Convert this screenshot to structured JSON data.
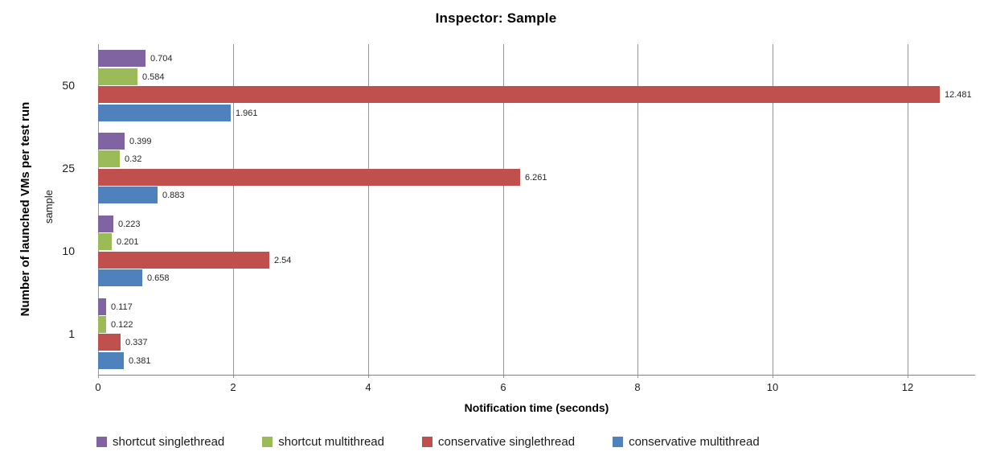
{
  "title": "Inspector: Sample",
  "chart_data": {
    "type": "bar",
    "orientation": "horizontal",
    "title": "Inspector: Sample",
    "xlabel": "Notification time (seconds)",
    "ylabel": "Number of launched VMs per test run",
    "ylabel_secondary": "sample",
    "categories": [
      "50",
      "25",
      "10",
      "1"
    ],
    "series": [
      {
        "name": "shortcut singlethread",
        "color": "#8064A2",
        "values": [
          0.704,
          0.399,
          0.223,
          0.117
        ]
      },
      {
        "name": "shortcut multithread",
        "color": "#9BBB59",
        "values": [
          0.584,
          0.32,
          0.201,
          0.122
        ]
      },
      {
        "name": "conservative singlethread",
        "color": "#C0504D",
        "values": [
          12.481,
          6.261,
          2.54,
          0.337
        ]
      },
      {
        "name": "conservative multithread",
        "color": "#4F81BD",
        "values": [
          1.961,
          0.883,
          0.658,
          0.381
        ]
      }
    ],
    "xticks": [
      0,
      2,
      4,
      6,
      8,
      10,
      12
    ],
    "xlim": [
      0,
      13
    ],
    "grid": true,
    "legend_position": "bottom",
    "value_labels_shown": true,
    "colors": {
      "gridline": "#969696",
      "axis_line": "#808080",
      "text": "#000000",
      "background": "#ffffff"
    }
  }
}
